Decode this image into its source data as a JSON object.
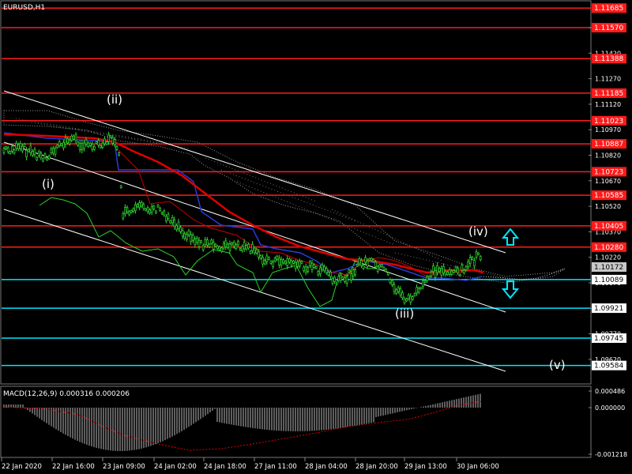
{
  "symbol_label": "EURUSD,H1",
  "macd_label": "MACD(12,26,9) 0.000316 0.000206",
  "price_ticks": [
    "1.11570",
    "1.11420",
    "1.11270",
    "1.11120",
    "1.10970",
    "1.10820",
    "1.10670",
    "1.10520",
    "1.10370",
    "1.10220",
    "1.10070",
    "1.09920",
    "1.09770",
    "1.09620"
  ],
  "red_levels": [
    "1.11685",
    "1.11570",
    "1.11388",
    "1.11185",
    "1.11023",
    "1.10887",
    "1.10723",
    "1.10585",
    "1.10405",
    "1.10280"
  ],
  "cyan_levels": [
    "1.10089",
    "1.09921",
    "1.09745",
    "1.09584"
  ],
  "current_price": "1.10172",
  "macd_ticks": [
    "0.000486",
    "0.000000",
    "-0.001218"
  ],
  "time_labels": [
    "22 Jan 2020",
    "22 Jan 16:00",
    "23 Jan 09:00",
    "24 Jan 02:00",
    "24 Jan 18:00",
    "27 Jan 11:00",
    "28 Jan 04:00",
    "28 Jan 20:00",
    "29 Jan 13:00",
    "30 Jan 06:00"
  ],
  "wave_labels": [
    "(i)",
    "(ii)",
    "(iii)",
    "(iv)",
    "(v)"
  ],
  "colors": {
    "background": "#000000",
    "red_level": "#ff1a1a",
    "cyan_level": "#00e5ff",
    "candles": "#33dd33",
    "moving_average": "#e00000",
    "channel": "#ffffff",
    "arrow": "#00e5ff",
    "grid": "#555555"
  },
  "icons": [
    "up-arrow-icon",
    "down-arrow-icon"
  ]
}
